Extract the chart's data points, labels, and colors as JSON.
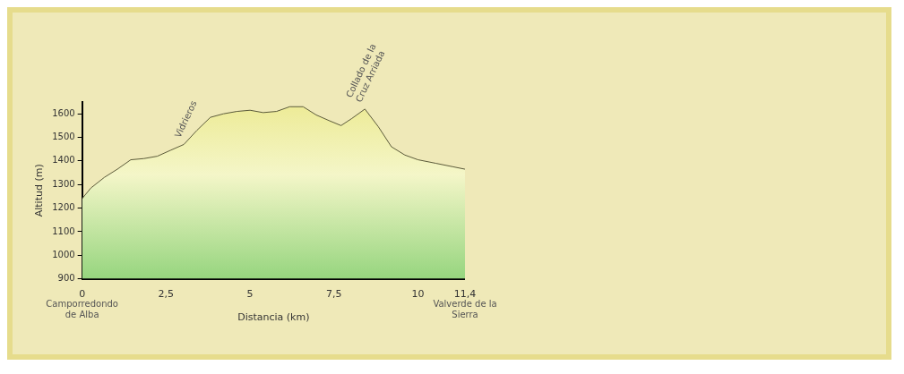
{
  "chart_data": {
    "type": "area",
    "xlabel": "Distancia (km)",
    "ylabel": "Altitud (m)",
    "xlim": [
      0,
      11.4
    ],
    "xticks": [
      0,
      {
        "value": 2.5,
        "label": "2,5"
      },
      5,
      {
        "value": 7.5,
        "label": "7,5"
      },
      10,
      {
        "value": 11.4,
        "label": "11,4"
      }
    ],
    "ylim": [
      900,
      1650
    ],
    "yticks": [
      900,
      1000,
      1100,
      1200,
      1300,
      1400,
      1500,
      1600
    ],
    "series": [
      {
        "color": "#e4dc55",
        "x": [
          0,
          0.26,
          0.66,
          1.05,
          1.45,
          1.84,
          2.24,
          2.63,
          3.03,
          3.42,
          3.82,
          4.21,
          4.61,
          5.0,
          5.39,
          5.79,
          6.18,
          6.58,
          6.97,
          7.37,
          7.71,
          8.03,
          8.42,
          8.82,
          9.21,
          9.61,
          10.0,
          10.53,
          11.05,
          11.4
        ],
        "values": [
          1240,
          1285,
          1330,
          1365,
          1405,
          1410,
          1420,
          1445,
          1470,
          1530,
          1585,
          1600,
          1610,
          1615,
          1605,
          1610,
          1630,
          1630,
          1595,
          1570,
          1550,
          1580,
          1620,
          1545,
          1460,
          1425,
          1405,
          1390,
          1375,
          1365
        ]
      }
    ],
    "annotations": [
      {
        "text": "Vidrieros",
        "x": 3.03,
        "y": 1470
      },
      {
        "text": "Collado de la Cruz Arriada",
        "x": 8.42,
        "y": 1620
      },
      {
        "text": "Camporredondo de Alba",
        "x": 0,
        "y": 900
      },
      {
        "text": "Valverde de la Sierra",
        "x": 11.4,
        "y": 900
      }
    ],
    "grid": false,
    "legend": false,
    "marker": "none"
  }
}
